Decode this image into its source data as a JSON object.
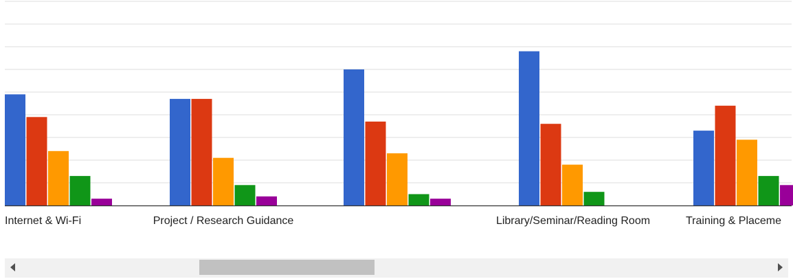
{
  "chart_data": {
    "type": "bar",
    "categories": [
      "Internet & Wi-Fi",
      "Project / Research Guidance",
      "",
      "Library/Seminar/Reading Room",
      "Training & Placeme"
    ],
    "series": [
      {
        "color": "#3366cc",
        "values": [
          49,
          47,
          60,
          68,
          33
        ]
      },
      {
        "color": "#dc3912",
        "values": [
          39,
          47,
          37,
          36,
          44
        ]
      },
      {
        "color": "#ff9900",
        "values": [
          24,
          21,
          23,
          18,
          29
        ]
      },
      {
        "color": "#109618",
        "values": [
          13,
          9,
          5,
          6,
          13
        ]
      },
      {
        "color": "#990099",
        "values": [
          3,
          4,
          3,
          0,
          9
        ]
      }
    ],
    "ylim": [
      0,
      90
    ],
    "grid": true,
    "gridlines": 9,
    "clipped_left": true,
    "clipped_right": true
  },
  "scrollbar": {
    "left_arrow_icon": "triangle-left",
    "right_arrow_icon": "triangle-right"
  }
}
